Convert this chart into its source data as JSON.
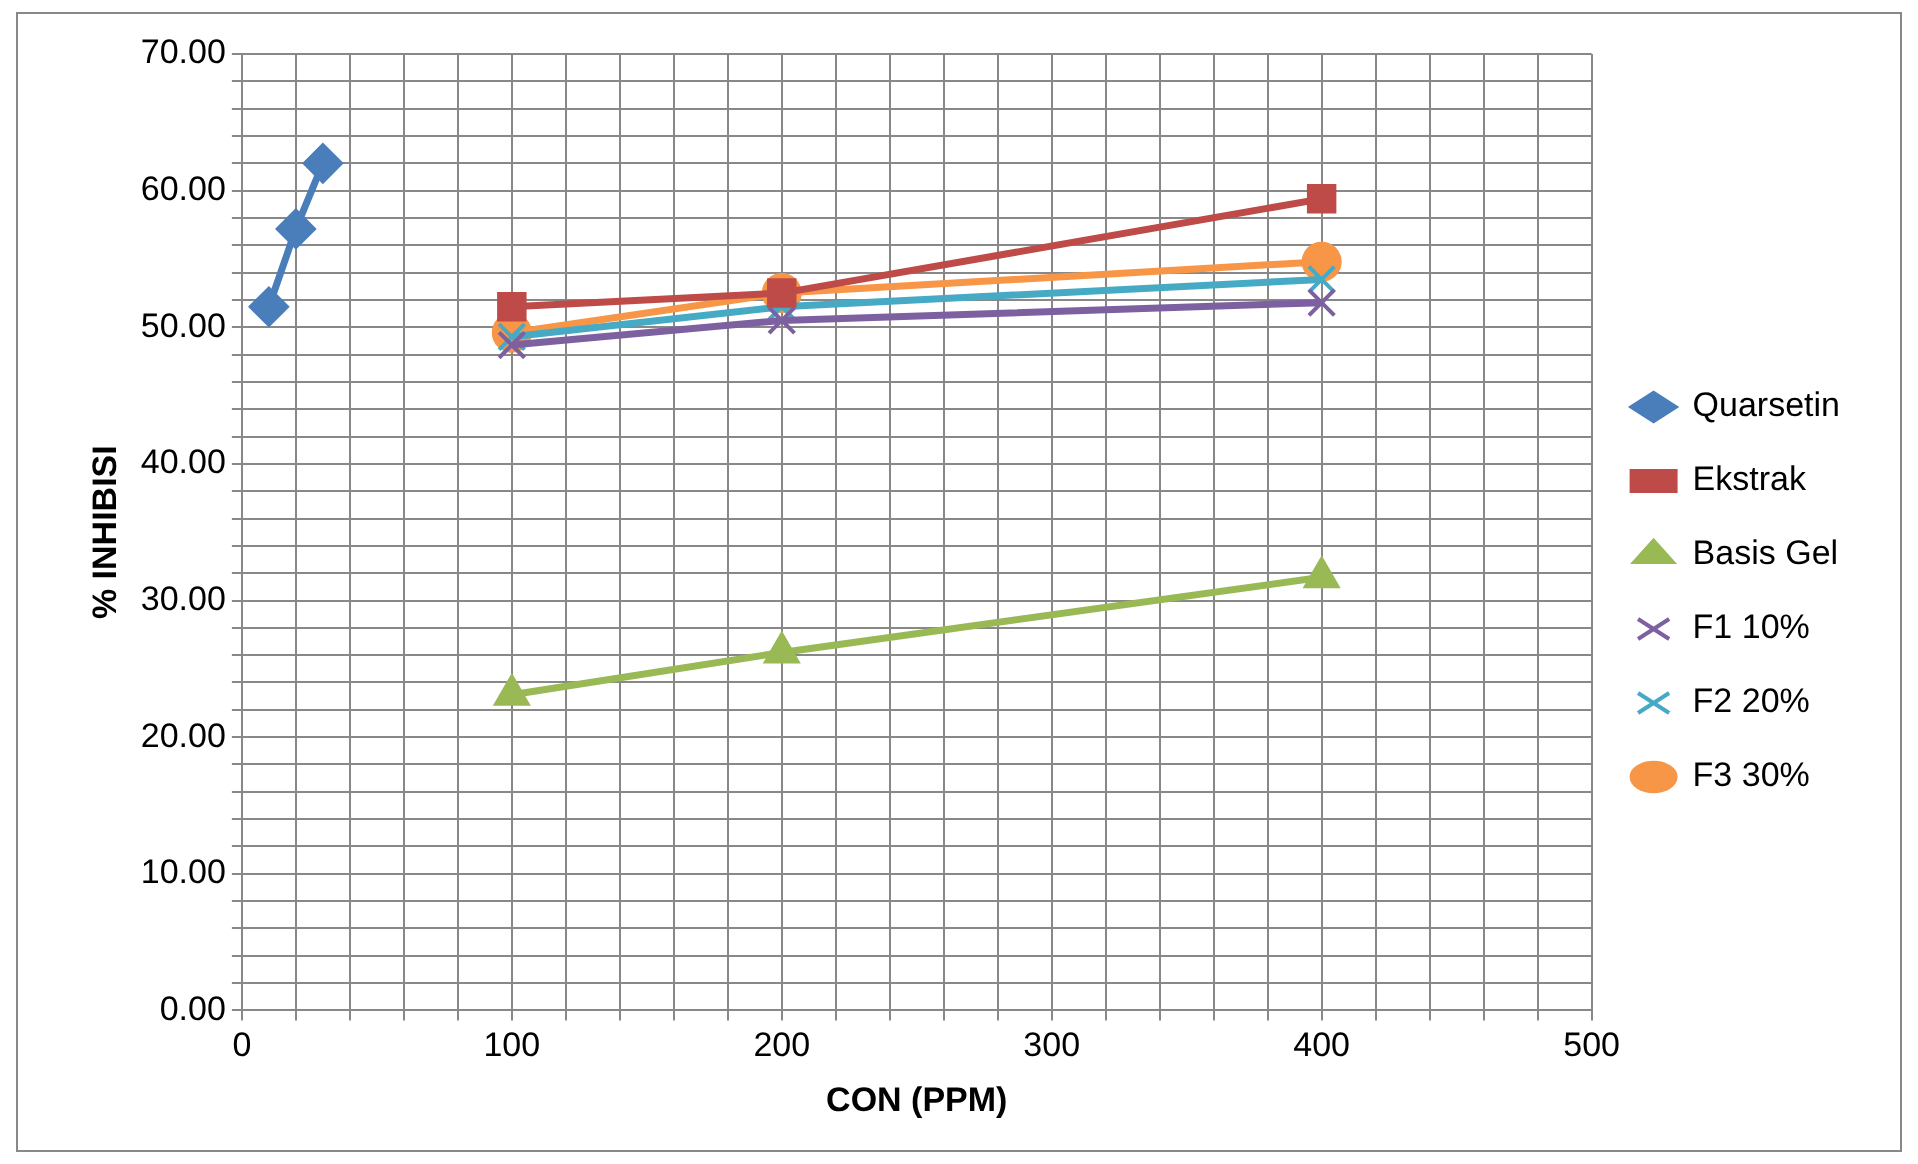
{
  "chart_data": {
    "type": "line",
    "xlabel": "CON (PPM)",
    "ylabel": "% INHIBISI",
    "xlim": [
      0,
      500
    ],
    "ylim": [
      0,
      70
    ],
    "xticks": [
      0,
      {
        "value": 20,
        "label": null
      },
      {
        "value": 40,
        "label": null
      },
      {
        "value": 60,
        "label": null
      },
      {
        "value": 80,
        "label": null
      },
      100,
      {
        "value": 120,
        "label": null
      },
      {
        "value": 140,
        "label": null
      },
      {
        "value": 160,
        "label": null
      },
      {
        "value": 180,
        "label": null
      },
      200,
      {
        "value": 220,
        "label": null
      },
      {
        "value": 240,
        "label": null
      },
      {
        "value": 260,
        "label": null
      },
      {
        "value": 280,
        "label": null
      },
      300,
      {
        "value": 320,
        "label": null
      },
      {
        "value": 340,
        "label": null
      },
      {
        "value": 360,
        "label": null
      },
      {
        "value": 380,
        "label": null
      },
      400,
      {
        "value": 420,
        "label": null
      },
      {
        "value": 440,
        "label": null
      },
      {
        "value": 460,
        "label": null
      },
      {
        "value": 480,
        "label": null
      },
      500
    ],
    "yticks": [
      {
        "value": 0,
        "label": "0.00"
      },
      {
        "value": 2,
        "label": null
      },
      {
        "value": 4,
        "label": null
      },
      {
        "value": 6,
        "label": null
      },
      {
        "value": 8,
        "label": null
      },
      {
        "value": 10,
        "label": "10.00"
      },
      {
        "value": 12,
        "label": null
      },
      {
        "value": 14,
        "label": null
      },
      {
        "value": 16,
        "label": null
      },
      {
        "value": 18,
        "label": null
      },
      {
        "value": 20,
        "label": "20.00"
      },
      {
        "value": 22,
        "label": null
      },
      {
        "value": 24,
        "label": null
      },
      {
        "value": 26,
        "label": null
      },
      {
        "value": 28,
        "label": null
      },
      {
        "value": 30,
        "label": "30.00"
      },
      {
        "value": 32,
        "label": null
      },
      {
        "value": 34,
        "label": null
      },
      {
        "value": 36,
        "label": null
      },
      {
        "value": 38,
        "label": null
      },
      {
        "value": 40,
        "label": "40.00"
      },
      {
        "value": 42,
        "label": null
      },
      {
        "value": 44,
        "label": null
      },
      {
        "value": 46,
        "label": null
      },
      {
        "value": 48,
        "label": null
      },
      {
        "value": 50,
        "label": "50.00"
      },
      {
        "value": 52,
        "label": null
      },
      {
        "value": 54,
        "label": null
      },
      {
        "value": 56,
        "label": null
      },
      {
        "value": 58,
        "label": null
      },
      {
        "value": 60,
        "label": "60.00"
      },
      {
        "value": 62,
        "label": null
      },
      {
        "value": 64,
        "label": null
      },
      {
        "value": 66,
        "label": null
      },
      {
        "value": 68,
        "label": null
      },
      {
        "value": 70,
        "label": "70.00"
      }
    ],
    "grid": true,
    "legend": "right",
    "series": [
      {
        "name": "Quarsetin",
        "color": "#4a7ebb",
        "marker": "diamond",
        "x": [
          10,
          20,
          30
        ],
        "values": [
          51.5,
          57.2,
          62.0
        ]
      },
      {
        "name": "Ekstrak",
        "color": "#be4b48",
        "marker": "square",
        "x": [
          100,
          200,
          400
        ],
        "values": [
          51.5,
          52.5,
          59.4
        ]
      },
      {
        "name": "Basis Gel",
        "color": "#98b954",
        "marker": "triangle",
        "x": [
          100,
          200,
          400
        ],
        "values": [
          23.1,
          26.2,
          31.7
        ]
      },
      {
        "name": "F1 10%",
        "color": "#7d60a0",
        "marker": "cross",
        "x": [
          100,
          200,
          400
        ],
        "values": [
          48.7,
          50.5,
          51.8
        ]
      },
      {
        "name": "F2 20%",
        "color": "#46aac5",
        "marker": "cross",
        "x": [
          100,
          200,
          400
        ],
        "values": [
          49.3,
          51.5,
          53.5
        ]
      },
      {
        "name": "F3 30%",
        "color": "#f79646",
        "marker": "circle",
        "x": [
          100,
          200,
          400
        ],
        "values": [
          49.6,
          52.5,
          54.8
        ]
      }
    ]
  }
}
